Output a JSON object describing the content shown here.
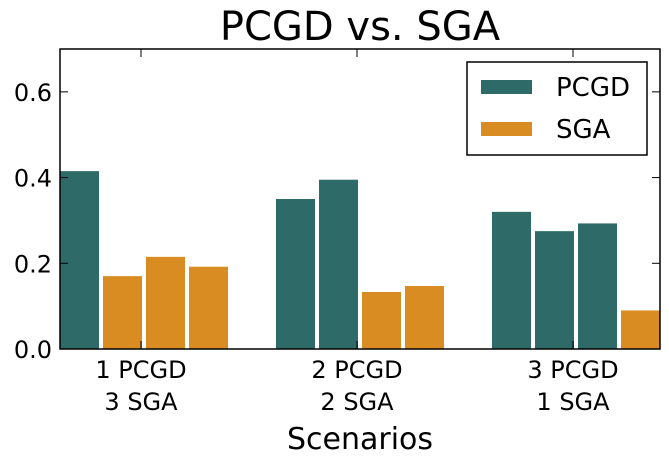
{
  "chart_data": {
    "type": "bar",
    "title": "PCGD vs. SGA",
    "xlabel": "Scenarios",
    "ylabel": "",
    "ylim": [
      0,
      0.7
    ],
    "yticks": [
      "0.0",
      "0.2",
      "0.4",
      "0.6"
    ],
    "ytick_values": [
      0,
      0.2,
      0.4,
      0.6
    ],
    "grid": false,
    "legend_position": "top-right",
    "legend": [
      {
        "name": "PCGD",
        "color": "#2e6b68"
      },
      {
        "name": "SGA",
        "color": "#d98c22"
      }
    ],
    "groups": [
      {
        "label_lines": [
          "1 PCGD",
          "3 SGA"
        ],
        "bars": [
          {
            "series": "PCGD",
            "value": 0.415
          },
          {
            "series": "SGA",
            "value": 0.17
          },
          {
            "series": "SGA",
            "value": 0.215
          },
          {
            "series": "SGA",
            "value": 0.192
          }
        ]
      },
      {
        "label_lines": [
          "2 PCGD",
          "2 SGA"
        ],
        "bars": [
          {
            "series": "PCGD",
            "value": 0.35
          },
          {
            "series": "PCGD",
            "value": 0.395
          },
          {
            "series": "SGA",
            "value": 0.133
          },
          {
            "series": "SGA",
            "value": 0.147
          }
        ]
      },
      {
        "label_lines": [
          "3 PCGD",
          "1 SGA"
        ],
        "bars": [
          {
            "series": "PCGD",
            "value": 0.32
          },
          {
            "series": "PCGD",
            "value": 0.275
          },
          {
            "series": "PCGD",
            "value": 0.293
          },
          {
            "series": "SGA",
            "value": 0.09
          }
        ]
      }
    ]
  }
}
